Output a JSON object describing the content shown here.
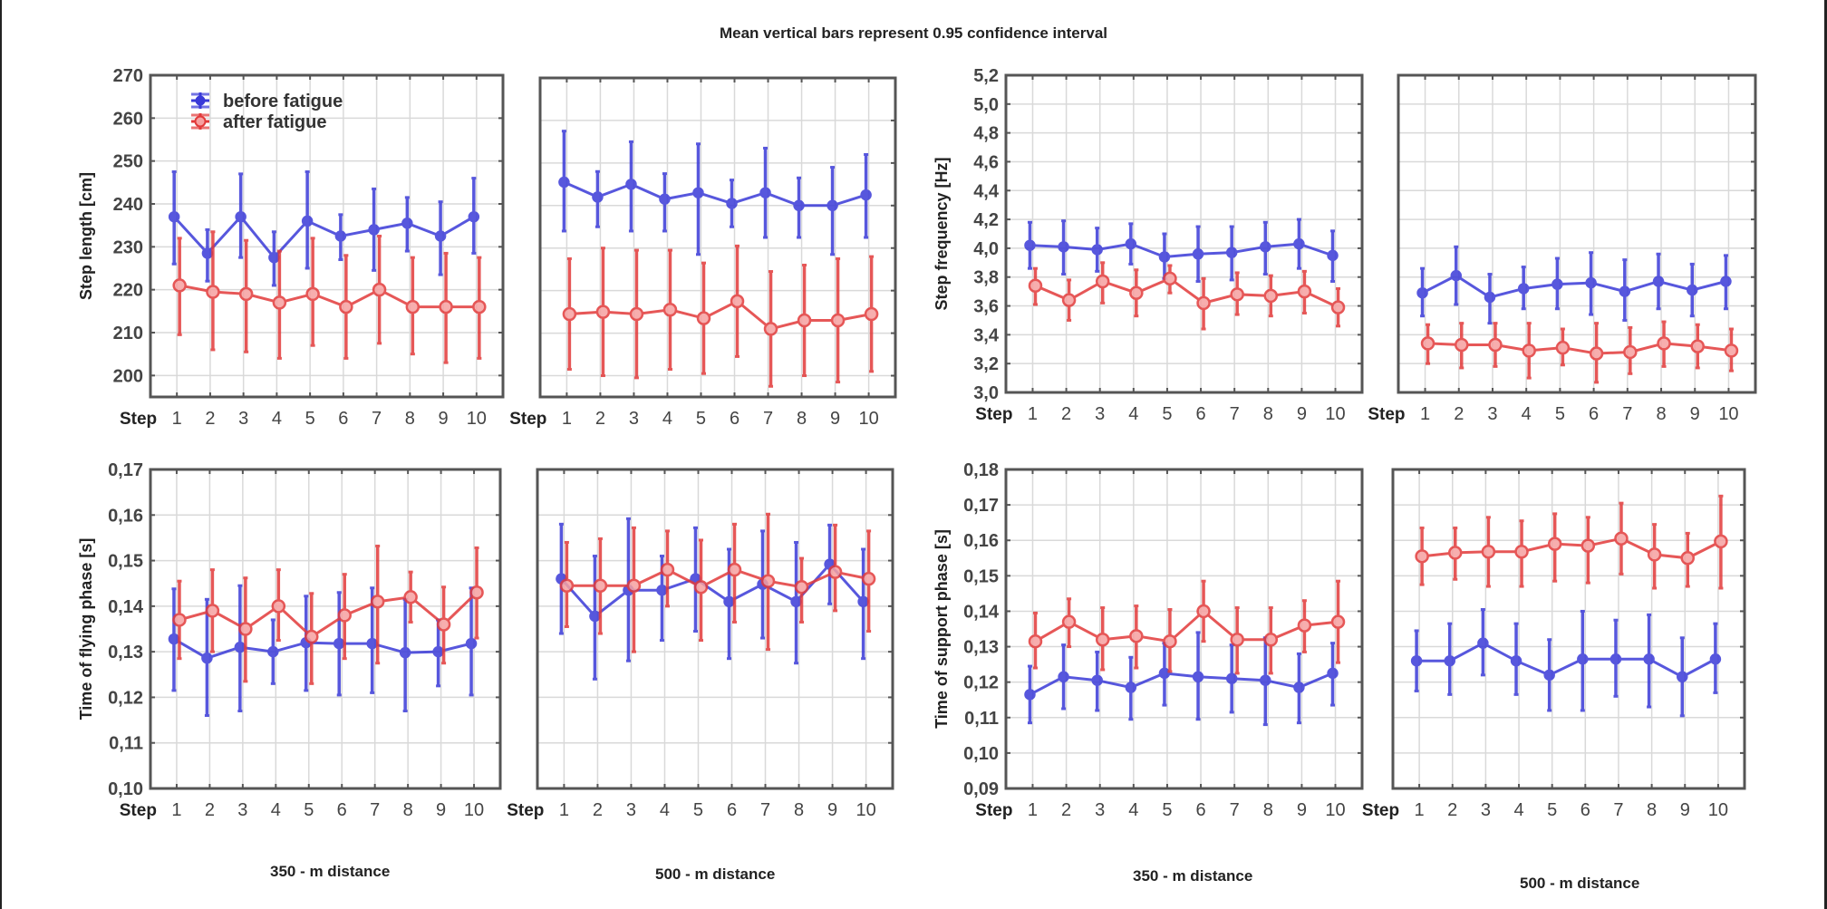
{
  "title": "Mean vertical bars represent 0.95 confidence interval",
  "legend": {
    "before": "before fatigue",
    "after": "after fatigue"
  },
  "colors": {
    "before": "#3a3ad8",
    "after": "#e23a3a",
    "grid": "#d9d9d9",
    "axis": "#555555"
  },
  "x_axis_prefix": "Step",
  "distance_labels": [
    "350 - m distance",
    "500 - m distance",
    "350 - m distance",
    "500 - m distance"
  ],
  "chart_data": [
    {
      "id": "step-length-350",
      "type": "line",
      "ylabel": "Step length [cm]",
      "ylim": [
        195,
        270
      ],
      "yticks": [
        200,
        210,
        220,
        230,
        240,
        250,
        260,
        270
      ],
      "ytick_labels": [
        "200",
        "210",
        "220",
        "230",
        "240",
        "250",
        "260",
        "270"
      ],
      "show_yticks": true,
      "show_legend": true,
      "legend_position": "top-left",
      "x": [
        1,
        2,
        3,
        4,
        5,
        6,
        7,
        8,
        9,
        10
      ],
      "series": [
        {
          "name": "before fatigue",
          "values": [
            237,
            228.5,
            237,
            227.5,
            236,
            232.5,
            234,
            235.5,
            232.5,
            237
          ],
          "ci_low": [
            226,
            222,
            227.5,
            221,
            225,
            227,
            224.5,
            229,
            223.5,
            228.5
          ],
          "ci_high": [
            247.5,
            234,
            247,
            233.5,
            247.5,
            237.5,
            243.5,
            241.5,
            240.5,
            246
          ]
        },
        {
          "name": "after fatigue",
          "values": [
            221,
            219.5,
            219,
            217,
            219,
            216,
            220,
            216,
            216,
            216
          ],
          "ci_low": [
            209.5,
            206,
            205.5,
            204,
            207,
            204,
            207.5,
            205,
            203,
            204
          ],
          "ci_high": [
            232,
            233.5,
            231.5,
            229,
            232,
            228,
            232.5,
            227.5,
            228.5,
            227.5
          ]
        }
      ]
    },
    {
      "id": "step-length-500",
      "type": "line",
      "ylabel": "",
      "ylim": [
        195,
        270
      ],
      "yticks": [
        200,
        210,
        220,
        230,
        240,
        250,
        260,
        270
      ],
      "ytick_labels": [],
      "show_yticks": false,
      "show_legend": false,
      "x": [
        1,
        2,
        3,
        4,
        5,
        6,
        7,
        8,
        9,
        10
      ],
      "series": [
        {
          "name": "before fatigue",
          "values": [
            245.5,
            242,
            245,
            241.5,
            243,
            240.5,
            243,
            240,
            240,
            242.5
          ],
          "ci_low": [
            234,
            235,
            234,
            234,
            228.5,
            235,
            232.5,
            232.5,
            228.5,
            232.5
          ],
          "ci_high": [
            257.5,
            248,
            255,
            247.5,
            254.5,
            246,
            253.5,
            246.5,
            249,
            252
          ]
        },
        {
          "name": "after fatigue",
          "values": [
            214.5,
            215,
            214.5,
            215.5,
            213.5,
            217.5,
            211,
            213,
            213,
            214.5
          ],
          "ci_low": [
            201.5,
            200,
            199.5,
            201.5,
            200.5,
            204.5,
            197.5,
            200,
            198.5,
            201
          ]
        },
        {
          "name": "_unused",
          "values": []
        }
      ]
    },
    {
      "id": "step-frequency-350",
      "type": "line",
      "ylabel": "Step frequency [Hz]",
      "ylim": [
        3.0,
        5.2
      ],
      "yticks": [
        3.0,
        3.2,
        3.4,
        3.6,
        3.8,
        4.0,
        4.2,
        4.4,
        4.6,
        4.8,
        5.0,
        5.2
      ],
      "ytick_labels": [
        "3,0",
        "3,2",
        "3,4",
        "3,6",
        "3,8",
        "4,0",
        "4,2",
        "4,4",
        "4,6",
        "4,8",
        "5,0",
        "5,2"
      ],
      "show_yticks": true,
      "show_legend": false,
      "x": [
        1,
        2,
        3,
        4,
        5,
        6,
        7,
        8,
        9,
        10
      ],
      "series": [
        {
          "name": "before fatigue",
          "values": [
            4.02,
            4.01,
            3.99,
            4.03,
            3.94,
            3.96,
            3.97,
            4.01,
            4.03,
            3.95
          ],
          "ci_low": [
            3.86,
            3.82,
            3.84,
            3.89,
            3.79,
            3.77,
            3.78,
            3.82,
            3.86,
            3.77
          ],
          "ci_high": [
            4.18,
            4.19,
            4.14,
            4.17,
            4.1,
            4.15,
            4.15,
            4.18,
            4.2,
            4.12
          ]
        },
        {
          "name": "after fatigue",
          "values": [
            3.74,
            3.64,
            3.77,
            3.69,
            3.79,
            3.62,
            3.68,
            3.67,
            3.7,
            3.59
          ],
          "ci_low": [
            3.61,
            3.5,
            3.62,
            3.53,
            3.69,
            3.44,
            3.54,
            3.53,
            3.55,
            3.46
          ],
          "ci_high": [
            3.86,
            3.78,
            3.9,
            3.85,
            3.88,
            3.79,
            3.83,
            3.81,
            3.84,
            3.72
          ]
        }
      ]
    },
    {
      "id": "step-frequency-500",
      "type": "line",
      "ylabel": "",
      "ylim": [
        3.0,
        5.2
      ],
      "yticks": [
        3.0,
        3.2,
        3.4,
        3.6,
        3.8,
        4.0,
        4.2,
        4.4,
        4.6,
        4.8,
        5.0,
        5.2
      ],
      "ytick_labels": [],
      "show_yticks": false,
      "show_legend": false,
      "x": [
        1,
        2,
        3,
        4,
        5,
        6,
        7,
        8,
        9,
        10
      ],
      "series": [
        {
          "name": "before fatigue",
          "values": [
            3.69,
            3.81,
            3.66,
            3.72,
            3.75,
            3.76,
            3.7,
            3.77,
            3.71,
            3.77
          ],
          "ci_low": [
            3.53,
            3.61,
            3.48,
            3.58,
            3.58,
            3.54,
            3.5,
            3.58,
            3.53,
            3.58
          ],
          "ci_high": [
            3.86,
            4.01,
            3.82,
            3.87,
            3.93,
            3.97,
            3.92,
            3.96,
            3.89,
            3.95
          ]
        },
        {
          "name": "after fatigue",
          "values": [
            3.34,
            3.33,
            3.33,
            3.29,
            3.31,
            3.27,
            3.28,
            3.34,
            3.32,
            3.29
          ],
          "ci_low": [
            3.2,
            3.17,
            3.18,
            3.1,
            3.19,
            3.07,
            3.13,
            3.18,
            3.17,
            3.15
          ],
          "ci_high": [
            3.47,
            3.48,
            3.48,
            3.48,
            3.44,
            3.48,
            3.45,
            3.49,
            3.47,
            3.44
          ]
        }
      ]
    },
    {
      "id": "flying-phase-350",
      "type": "line",
      "ylabel": "Time of flying phase [s]",
      "ylim": [
        0.1,
        0.17
      ],
      "yticks": [
        0.1,
        0.11,
        0.12,
        0.13,
        0.14,
        0.15,
        0.16,
        0.17
      ],
      "ytick_labels": [
        "0,10",
        "0,11",
        "0,12",
        "0,13",
        "0,14",
        "0,15",
        "0,16",
        "0,17"
      ],
      "show_yticks": true,
      "show_legend": false,
      "x": [
        1,
        2,
        3,
        4,
        5,
        6,
        7,
        8,
        9,
        10
      ],
      "series": [
        {
          "name": "before fatigue",
          "values": [
            0.1328,
            0.1286,
            0.131,
            0.13,
            0.132,
            0.1318,
            0.1318,
            0.1298,
            0.13,
            0.1318
          ],
          "ci_low": [
            0.1215,
            0.116,
            0.117,
            0.123,
            0.1215,
            0.1205,
            0.121,
            0.117,
            0.1225,
            0.1205
          ],
          "ci_high": [
            0.1438,
            0.1415,
            0.1445,
            0.137,
            0.1422,
            0.143,
            0.144,
            0.1415,
            0.137,
            0.144
          ]
        },
        {
          "name": "after fatigue",
          "values": [
            0.137,
            0.139,
            0.135,
            0.14,
            0.1333,
            0.138,
            0.141,
            0.142,
            0.136,
            0.143
          ],
          "ci_low": [
            0.1285,
            0.13,
            0.1235,
            0.1325,
            0.123,
            0.1285,
            0.1275,
            0.1365,
            0.1275,
            0.133
          ],
          "ci_high": [
            0.1455,
            0.148,
            0.1462,
            0.148,
            0.1428,
            0.147,
            0.1532,
            0.1475,
            0.1442,
            0.1528
          ]
        }
      ]
    },
    {
      "id": "flying-phase-500",
      "type": "line",
      "ylabel": "",
      "ylim": [
        0.1,
        0.17
      ],
      "yticks": [
        0.1,
        0.11,
        0.12,
        0.13,
        0.14,
        0.15,
        0.16,
        0.17
      ],
      "ytick_labels": [],
      "show_yticks": false,
      "show_legend": false,
      "x": [
        1,
        2,
        3,
        4,
        5,
        6,
        7,
        8,
        9,
        10
      ],
      "series": [
        {
          "name": "before fatigue",
          "values": [
            0.146,
            0.1378,
            0.1435,
            0.1435,
            0.146,
            0.141,
            0.1448,
            0.141,
            0.1492,
            0.141
          ],
          "ci_low": [
            0.134,
            0.124,
            0.128,
            0.1325,
            0.1345,
            0.1285,
            0.133,
            0.1275,
            0.1405,
            0.1285
          ],
          "ci_high": [
            0.158,
            0.151,
            0.1592,
            0.151,
            0.1572,
            0.1525,
            0.1565,
            0.154,
            0.1578,
            0.1525
          ]
        },
        {
          "name": "after fatigue",
          "values": [
            0.1445,
            0.1445,
            0.1445,
            0.148,
            0.1442,
            0.148,
            0.1455,
            0.1442,
            0.1475,
            0.146
          ],
          "ci_low": [
            0.1355,
            0.134,
            0.13,
            0.14,
            0.1325,
            0.1365,
            0.1305,
            0.1365,
            0.139,
            0.1345
          ],
          "ci_high": [
            0.154,
            0.1548,
            0.1572,
            0.1565,
            0.1545,
            0.158,
            0.1602,
            0.1505,
            0.1578,
            0.1565
          ]
        }
      ]
    },
    {
      "id": "support-phase-350",
      "type": "line",
      "ylabel": "Time of support phase [s]",
      "ylim": [
        0.09,
        0.18
      ],
      "yticks": [
        0.09,
        0.1,
        0.11,
        0.12,
        0.13,
        0.14,
        0.15,
        0.16,
        0.17,
        0.18
      ],
      "ytick_labels": [
        "0,09",
        "0,10",
        "0,11",
        "0,12",
        "0,13",
        "0,14",
        "0,15",
        "0,16",
        "0,17",
        "0,18"
      ],
      "show_yticks": true,
      "show_legend": false,
      "x": [
        1,
        2,
        3,
        4,
        5,
        6,
        7,
        8,
        9,
        10
      ],
      "series": [
        {
          "name": "before fatigue",
          "values": [
            0.1165,
            0.1215,
            0.1205,
            0.1185,
            0.1225,
            0.1215,
            0.121,
            0.1205,
            0.1185,
            0.1225
          ],
          "ci_low": [
            0.1085,
            0.1125,
            0.112,
            0.1095,
            0.1135,
            0.1095,
            0.1115,
            0.108,
            0.1085,
            0.1135
          ],
          "ci_high": [
            0.1245,
            0.1305,
            0.1285,
            0.127,
            0.131,
            0.134,
            0.1305,
            0.1325,
            0.128,
            0.131
          ]
        },
        {
          "name": "after fatigue",
          "values": [
            0.1315,
            0.137,
            0.132,
            0.133,
            0.1315,
            0.14,
            0.132,
            0.132,
            0.136,
            0.137
          ],
          "ci_low": [
            0.124,
            0.13,
            0.1235,
            0.124,
            0.123,
            0.1315,
            0.1225,
            0.1225,
            0.1285,
            0.1255
          ],
          "ci_high": [
            0.1395,
            0.1435,
            0.141,
            0.1415,
            0.1405,
            0.1485,
            0.141,
            0.141,
            0.143,
            0.1485
          ]
        }
      ]
    },
    {
      "id": "support-phase-500",
      "type": "line",
      "ylabel": "",
      "ylim": [
        0.09,
        0.18
      ],
      "yticks": [
        0.09,
        0.1,
        0.11,
        0.12,
        0.13,
        0.14,
        0.15,
        0.16,
        0.17,
        0.18
      ],
      "ytick_labels": [],
      "show_yticks": false,
      "show_legend": false,
      "x": [
        1,
        2,
        3,
        4,
        5,
        6,
        7,
        8,
        9,
        10
      ],
      "series": [
        {
          "name": "before fatigue",
          "values": [
            0.126,
            0.126,
            0.131,
            0.126,
            0.122,
            0.1265,
            0.1265,
            0.1265,
            0.1215,
            0.1265
          ],
          "ci_low": [
            0.1175,
            0.1165,
            0.122,
            0.1165,
            0.112,
            0.112,
            0.116,
            0.113,
            0.1105,
            0.117
          ],
          "ci_high": [
            0.1345,
            0.1365,
            0.1405,
            0.1365,
            0.132,
            0.14,
            0.1375,
            0.139,
            0.1325,
            0.1365
          ]
        },
        {
          "name": "after fatigue",
          "values": [
            0.1555,
            0.1565,
            0.1568,
            0.1568,
            0.159,
            0.1585,
            0.1605,
            0.156,
            0.155,
            0.1597
          ],
          "ci_low": [
            0.1475,
            0.149,
            0.147,
            0.147,
            0.1485,
            0.148,
            0.1505,
            0.1465,
            0.147,
            0.1465
          ],
          "ci_high": [
            0.1635,
            0.1635,
            0.1665,
            0.1655,
            0.1675,
            0.1665,
            0.1705,
            0.1645,
            0.162,
            0.1725
          ]
        }
      ]
    }
  ]
}
